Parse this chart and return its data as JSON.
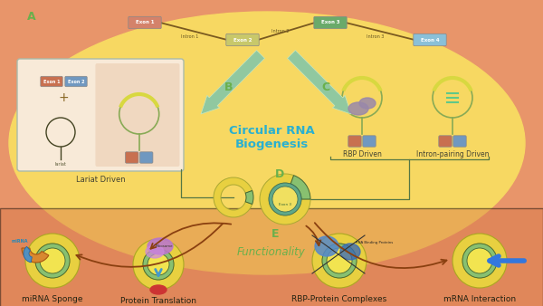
{
  "bg_outer_color": "#e8956a",
  "bg_ellipse_color": "#f7d862",
  "title_text": "Circular RNA\nBiogenesis",
  "title_color": "#2ab0d0",
  "title_fontsize": 9.5,
  "label_color": "#6ab04c",
  "label_fontsize": 9,
  "exon1_color": "#d4826a",
  "exon2_color": "#c8c86a",
  "exon3_color": "#6aaa6a",
  "exon4_color": "#8ac0d8",
  "intron_color": "#7a5a20",
  "arrow_bc_color": "#90c8a0",
  "lariat_box_color": "#f8ead8",
  "lariat_box_color2": "#f0d8c0",
  "lariat_border_color": "#88aa88",
  "miRNA_label": "miRNA Sponge",
  "protein_label": "Protein Translation",
  "rbp_label": "RBP-Protein Complexes",
  "mrna_label": "mRNA Interaction",
  "func_label": "Functionality",
  "lariat_label": "Lariat Driven",
  "rbp_driven_label": "RBP Driven",
  "intron_pairing_label": "Intron-pairing Driven",
  "ring_yellow": "#e8d040",
  "ring_green": "#88c070",
  "ring_teal": "#60a888",
  "brown_arrow": "#8a4010",
  "figure_width": 6.0,
  "figure_height": 3.38
}
